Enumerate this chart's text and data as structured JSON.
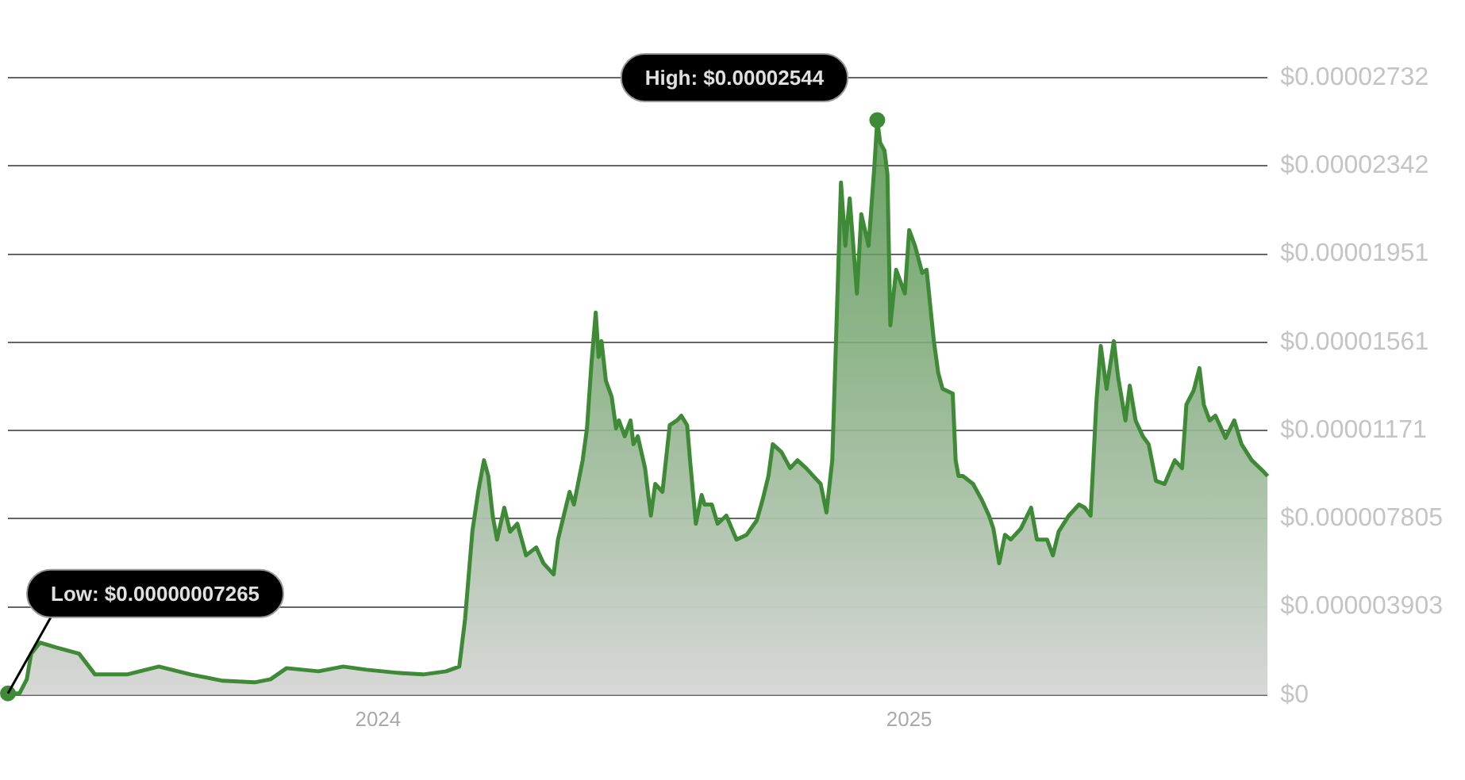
{
  "chart_data": {
    "type": "area",
    "x": [
      "2023-04-21",
      "2023-04-29",
      "2023-05-04",
      "2023-05-07",
      "2023-05-13",
      "2023-05-24",
      "2023-06-09",
      "2023-06-20",
      "2023-07-12",
      "2023-08-03",
      "2023-08-25",
      "2023-09-16",
      "2023-10-08",
      "2023-10-19",
      "2023-10-30",
      "2023-11-21",
      "2023-12-08",
      "2023-12-24",
      "2024-01-15",
      "2024-02-01",
      "2024-02-17",
      "2024-02-26",
      "2024-03-01",
      "2024-03-06",
      "2024-03-10",
      "2024-03-14",
      "2024-03-17",
      "2024-03-20",
      "2024-03-23",
      "2024-03-28",
      "2024-04-01",
      "2024-04-06",
      "2024-04-12",
      "2024-04-19",
      "2024-04-24",
      "2024-05-01",
      "2024-05-04",
      "2024-05-08",
      "2024-05-12",
      "2024-05-15",
      "2024-05-21",
      "2024-05-24",
      "2024-05-27",
      "2024-05-30",
      "2024-06-01",
      "2024-06-03",
      "2024-06-06",
      "2024-06-10",
      "2024-06-13",
      "2024-06-15",
      "2024-06-19",
      "2024-06-23",
      "2024-06-25",
      "2024-06-28",
      "2024-07-03",
      "2024-07-07",
      "2024-07-10",
      "2024-07-15",
      "2024-07-20",
      "2024-07-25",
      "2024-07-28",
      "2024-08-01",
      "2024-08-03",
      "2024-08-07",
      "2024-08-11",
      "2024-08-13",
      "2024-08-18",
      "2024-08-22",
      "2024-08-28",
      "2024-09-04",
      "2024-09-11",
      "2024-09-18",
      "2024-09-22",
      "2024-09-26",
      "2024-09-29",
      "2024-10-05",
      "2024-10-11",
      "2024-10-16",
      "2024-10-22",
      "2024-10-27",
      "2024-11-01",
      "2024-11-05",
      "2024-11-09",
      "2024-11-15",
      "2024-11-18",
      "2024-11-21",
      "2024-11-26",
      "2024-11-29",
      "2024-12-04",
      "2024-12-08",
      "2024-12-10",
      "2024-12-12",
      "2024-12-15",
      "2024-12-17",
      "2024-12-19",
      "2024-12-23",
      "2024-12-29",
      "2025-01-01",
      "2025-01-05",
      "2025-01-10",
      "2025-01-13",
      "2025-01-18",
      "2025-01-21",
      "2025-01-24",
      "2025-01-31",
      "2025-02-02",
      "2025-02-04",
      "2025-02-07",
      "2025-02-14",
      "2025-02-20",
      "2025-02-25",
      "2025-02-28",
      "2025-03-04",
      "2025-03-08",
      "2025-03-12",
      "2025-03-19",
      "2025-03-26",
      "2025-03-30",
      "2025-04-06",
      "2025-04-10",
      "2025-04-14",
      "2025-04-21",
      "2025-04-28",
      "2025-05-02",
      "2025-05-06",
      "2025-05-10",
      "2025-05-13",
      "2025-05-17",
      "2025-05-22",
      "2025-05-25",
      "2025-05-30",
      "2025-06-02",
      "2025-06-06",
      "2025-06-11",
      "2025-06-15",
      "2025-06-20",
      "2025-06-26",
      "2025-07-03",
      "2025-07-08",
      "2025-07-11",
      "2025-07-16",
      "2025-07-20",
      "2025-07-23",
      "2025-07-27",
      "2025-07-31",
      "2025-08-07",
      "2025-08-13",
      "2025-08-18",
      "2025-08-25",
      "2025-09-02",
      "2025-09-05"
    ],
    "series": [
      {
        "color": "#3f8a36",
        "values": [
          7.265e-08,
          7.5e-08,
          7e-07,
          1.83e-06,
          2.32e-06,
          2.11e-06,
          1.83e-06,
          9.1e-07,
          9.1e-07,
          1.26e-06,
          9.1e-07,
          6.3e-07,
          5.6e-07,
          7e-07,
          1.19e-06,
          1.05e-06,
          1.26e-06,
          1.12e-06,
          9.8e-07,
          9.1e-07,
          1.05e-06,
          1.26e-06,
          3.37e-06,
          7.23e-06,
          8.99e-06,
          1.039e-05,
          9.69e-06,
          7.94e-06,
          6.88e-06,
          8.29e-06,
          7.23e-06,
          7.58e-06,
          6.18e-06,
          6.53e-06,
          5.83e-06,
          5.34e-06,
          6.88e-06,
          7.94e-06,
          8.99e-06,
          8.43e-06,
          1.039e-05,
          1.18e-05,
          1.461e-05,
          1.693e-05,
          1.496e-05,
          1.566e-05,
          1.391e-05,
          1.32e-05,
          1.18e-05,
          1.215e-05,
          1.145e-05,
          1.215e-05,
          1.11e-05,
          1.145e-05,
          1.004e-05,
          7.94e-06,
          9.34e-06,
          8.99e-06,
          1.194e-05,
          1.215e-05,
          1.236e-05,
          1.194e-05,
          1.039e-05,
          7.58e-06,
          8.85e-06,
          8.43e-06,
          8.43e-06,
          7.58e-06,
          7.94e-06,
          6.88e-06,
          7.09e-06,
          7.73e-06,
          8.64e-06,
          9.69e-06,
          1.11e-05,
          1.075e-05,
          1.004e-05,
          1.039e-05,
          1.004e-05,
          9.69e-06,
          9.34e-06,
          8.08e-06,
          1.039e-05,
          2.268e-05,
          1.988e-05,
          2.198e-05,
          1.777e-05,
          2.128e-05,
          1.988e-05,
          2.339e-05,
          2.544e-05,
          2.444e-05,
          2.409e-05,
          2.304e-05,
          1.636e-05,
          1.882e-05,
          1.777e-05,
          2.058e-05,
          1.988e-05,
          1.868e-05,
          1.882e-05,
          1.566e-05,
          1.426e-05,
          1.355e-05,
          1.334e-05,
          1.039e-05,
          9.69e-06,
          9.69e-06,
          9.34e-06,
          8.64e-06,
          7.94e-06,
          7.37e-06,
          5.83e-06,
          7.09e-06,
          6.88e-06,
          7.37e-06,
          8.29e-06,
          6.88e-06,
          6.88e-06,
          6.18e-06,
          7.23e-06,
          7.94e-06,
          8.43e-06,
          8.29e-06,
          7.94e-06,
          1.299e-05,
          1.545e-05,
          1.355e-05,
          1.566e-05,
          1.405e-05,
          1.215e-05,
          1.369e-05,
          1.215e-05,
          1.145e-05,
          1.11e-05,
          9.48e-06,
          9.34e-06,
          1.039e-05,
          1.004e-05,
          1.285e-05,
          1.348e-05,
          1.447e-05,
          1.285e-05,
          1.215e-05,
          1.236e-05,
          1.138e-05,
          1.215e-05,
          1.11e-05,
          1.039e-05,
          9.9e-06,
          9.69e-06
        ]
      }
    ],
    "xlim": [
      "2023-04-21",
      "2025-09-05"
    ],
    "xticks": [
      "2024",
      "2025"
    ],
    "ylim": [
      0,
      2.732e-05
    ],
    "yticks": [
      {
        "value": 0,
        "label": "$0"
      },
      {
        "value": 3.903e-06,
        "label": "$0.000003903"
      },
      {
        "value": 7.805e-06,
        "label": "$0.000007805"
      },
      {
        "value": 1.171e-05,
        "label": "$0.00001171"
      },
      {
        "value": 1.561e-05,
        "label": "$0.00001561"
      },
      {
        "value": 1.951e-05,
        "label": "$0.00001951"
      },
      {
        "value": 2.342e-05,
        "label": "$0.00002342"
      },
      {
        "value": 2.732e-05,
        "label": "$0.00002732"
      }
    ],
    "grid": "y",
    "legend": false,
    "annotations": [
      {
        "text": "High: $0.00002544",
        "x": "2024-12-10",
        "y": 2.544e-05
      },
      {
        "text": "Low: $0.00000007265",
        "x": "2023-04-21",
        "y": 7.265e-08
      }
    ]
  }
}
